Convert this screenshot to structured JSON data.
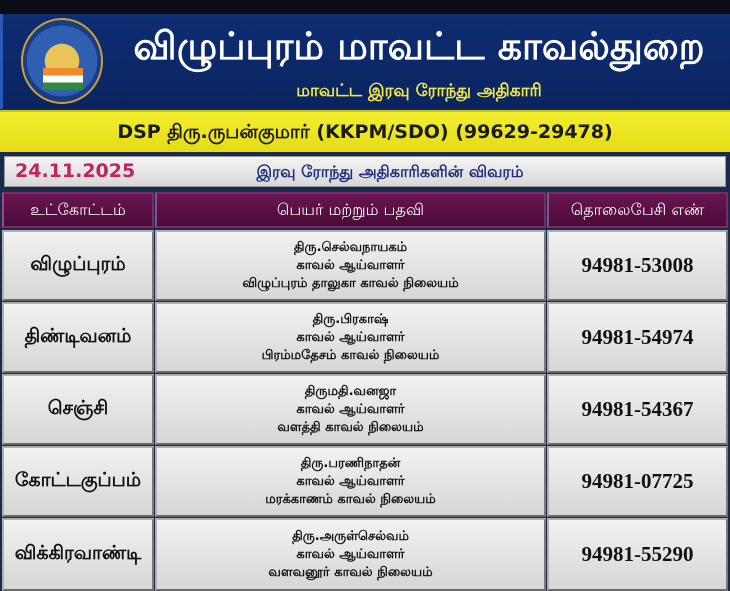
{
  "header": {
    "title": "விழுப்புரம் மாவட்ட காவல்துறை",
    "subtitle": "மாவட்ட இரவு ரோந்து அதிகாரி",
    "logo_text": "TAMILNADU POLICE"
  },
  "dsp": {
    "text": "DSP திரு.ருபன்குமார் (KKPM/SDO) (99629-29478)"
  },
  "date_row": {
    "date": "24.11.2025",
    "title": "இரவு ரோந்து அதிகாரிகளின் விவரம்"
  },
  "table": {
    "columns": [
      "உட்கோட்டம்",
      "பெயர் மற்றும் பதவி",
      "தொலைபேசி எண்"
    ],
    "rows": [
      {
        "subdivision": "விழுப்புரம்",
        "name": "திரு.செல்வநாயகம்",
        "rank": "காவல் ஆய்வாளர்",
        "station": "விழுப்புரம் தாலுகா காவல் நிலையம்",
        "phone": "94981-53008"
      },
      {
        "subdivision": "திண்டிவனம்",
        "name": "திரு.பிரகாஷ்",
        "rank": "காவல் ஆய்வாளர்",
        "station": "பிரம்மதேசம் காவல் நிலையம்",
        "phone": "94981-54974"
      },
      {
        "subdivision": "செஞ்சி",
        "name": "திருமதி.வனஜா",
        "rank": "காவல் ஆய்வாளர்",
        "station": "வளத்தி காவல் நிலையம்",
        "phone": "94981-54367"
      },
      {
        "subdivision": "கோட்டகுப்பம்",
        "name": "திரு.பரணிநாதன்",
        "rank": "காவல் ஆய்வாளர்",
        "station": "மரக்காணம் காவல் நிலையம்",
        "phone": "94981-07725"
      },
      {
        "subdivision": "விக்கிரவாண்டி",
        "name": "திரு.அருள்செல்வம்",
        "rank": "காவல் ஆய்வாளர்",
        "station": "வளவனூர் காவல் நிலையம்",
        "phone": "94981-55290"
      }
    ]
  },
  "colors": {
    "banner": "#0d2d72",
    "dsp_bar": "#f4ef2e",
    "header_row": "#5a0f44",
    "date": "#c0255e"
  }
}
